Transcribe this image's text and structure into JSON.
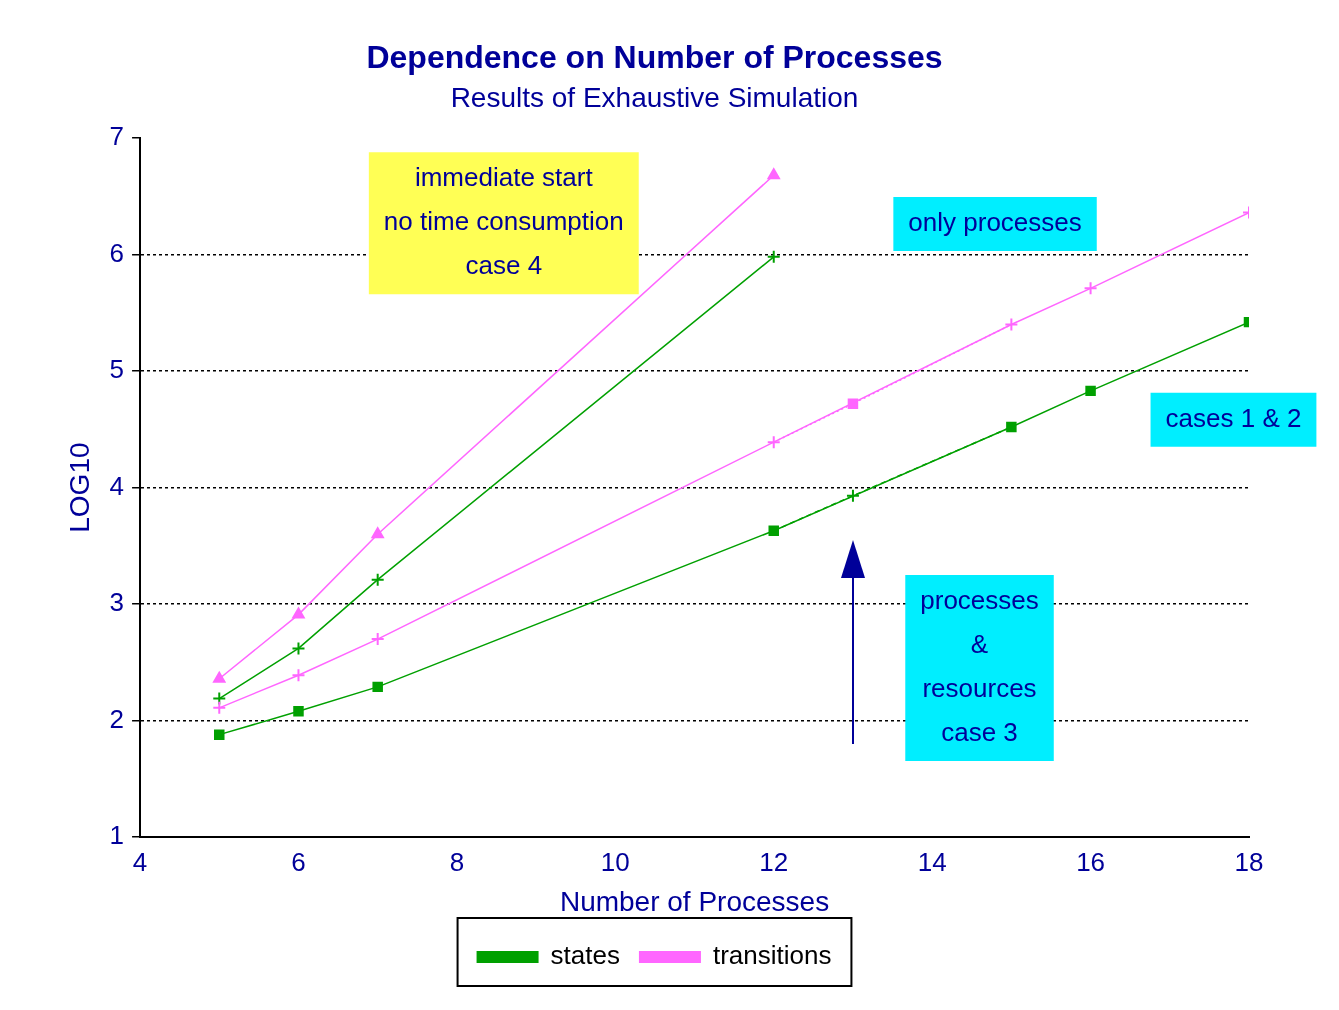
{
  "chart_data": {
    "type": "line",
    "title": "Dependence on Number of Processes",
    "subtitle": "Results of Exhaustive Simulation",
    "xlabel": "Number of Processes",
    "ylabel": "LOG10",
    "xlim": [
      4,
      18
    ],
    "xticks": [
      4,
      6,
      8,
      10,
      12,
      14,
      16,
      18
    ],
    "ylim": [
      1,
      7
    ],
    "yticks": [
      1,
      2,
      3,
      4,
      5,
      6,
      7
    ],
    "grid": "y",
    "legend": "bottom",
    "series": [
      {
        "name": "states",
        "color": "#00a000",
        "marker": "square",
        "x": [
          5,
          6,
          7,
          12,
          15,
          16,
          18
        ],
        "values": [
          1.88,
          2.08,
          2.29,
          3.63,
          4.52,
          4.83,
          5.42
        ]
      },
      {
        "name": "transitions",
        "color": "#ff66ff",
        "marker": "cross",
        "x": [
          5,
          6,
          7,
          12,
          15,
          16,
          18
        ],
        "values": [
          2.11,
          2.39,
          2.7,
          4.39,
          5.4,
          5.71,
          6.36
        ]
      },
      {
        "color": "#00a000",
        "marker": "none",
        "line_style": "dashed",
        "x": [
          12,
          13,
          15
        ],
        "values": [
          3.63,
          3.93,
          4.52
        ]
      },
      {
        "color": "#ff66ff",
        "marker": "none",
        "line_style": "dotted",
        "x": [
          12,
          13,
          15
        ],
        "values": [
          4.39,
          4.72,
          5.4
        ]
      },
      {
        "color": "#00a000",
        "marker": "cross",
        "x": [
          13
        ],
        "values": [
          3.93
        ]
      },
      {
        "color": "#ff66ff",
        "marker": "square",
        "x": [
          13
        ],
        "values": [
          4.72
        ]
      },
      {
        "color": "#00a000",
        "marker": "cross",
        "x": [
          5,
          6,
          7,
          12
        ],
        "values": [
          2.19,
          2.62,
          3.21,
          5.98
        ]
      },
      {
        "color": "#ff66ff",
        "marker": "triangle",
        "x": [
          5,
          6,
          7,
          12
        ],
        "values": [
          2.36,
          2.91,
          3.6,
          6.68
        ]
      }
    ],
    "annotations": [
      "immediate start\nno time consumption\ncase 4",
      "only processes",
      "cases 1 & 2",
      "processes\n&\nresources\ncase 3"
    ]
  }
}
